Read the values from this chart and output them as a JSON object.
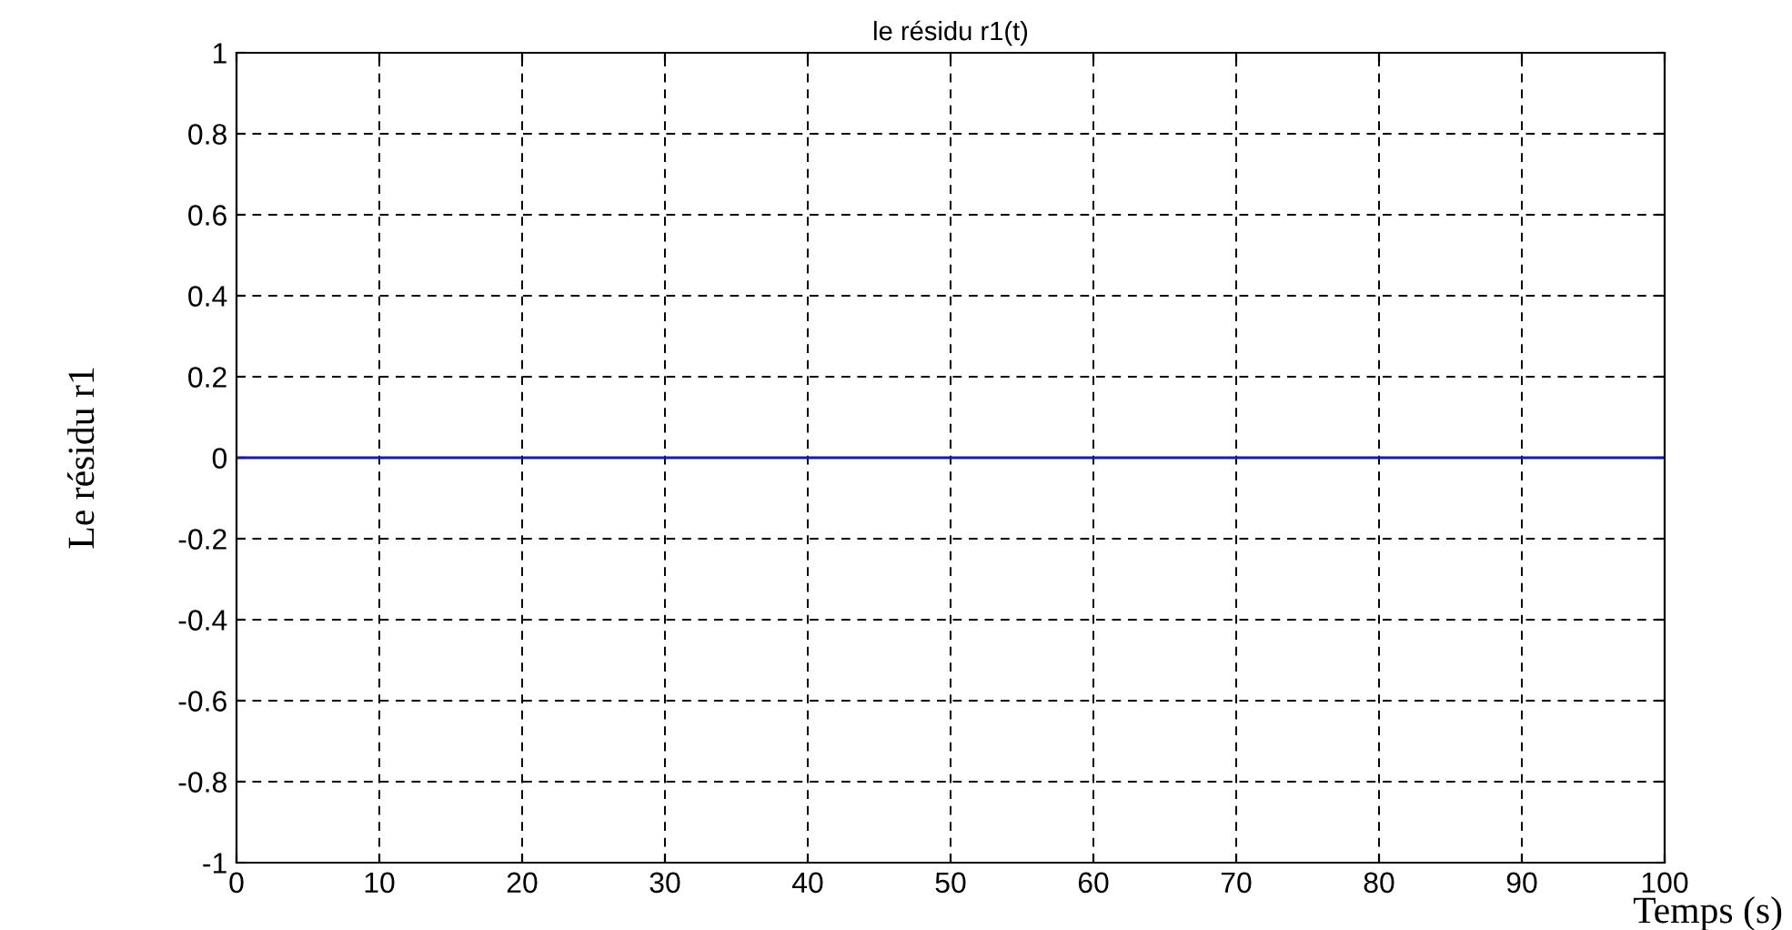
{
  "chart_data": {
    "type": "line",
    "title": "le résidu r1(t)",
    "xlabel": "Temps (s)",
    "ylabel": "Le résidu r1",
    "x": [
      0,
      100
    ],
    "series": [
      {
        "color": "#1a1aa0",
        "values": [
          0,
          0
        ]
      }
    ],
    "xlim": [
      0,
      100
    ],
    "xticks": [
      0,
      10,
      20,
      30,
      40,
      50,
      60,
      70,
      80,
      90,
      100
    ],
    "ylim": [
      -1,
      1
    ],
    "yticks": [
      -1,
      -0.8,
      -0.6,
      -0.4,
      -0.2,
      0,
      0.2,
      0.4,
      0.6,
      0.8,
      1
    ],
    "grid": true,
    "line_style": "solid",
    "marker": "none",
    "legend": false
  }
}
